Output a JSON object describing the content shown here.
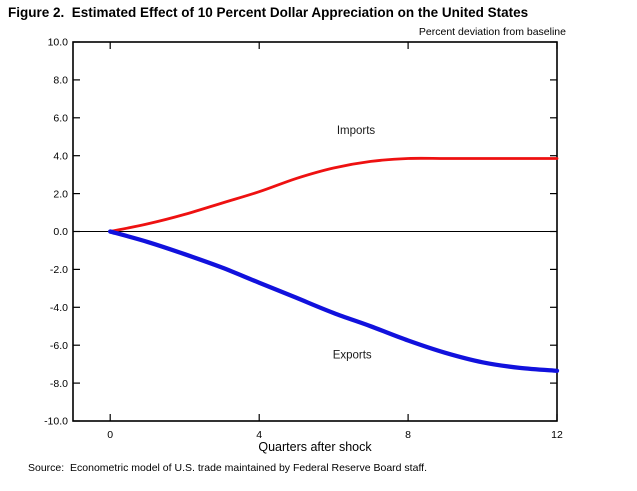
{
  "figure": {
    "title": "Figure 2.  Estimated Effect of 10 Percent Dollar Appreciation on the United States",
    "unit_label": "Percent deviation from baseline",
    "source": "Source:  Econometric model of U.S. trade maintained by Federal Reserve Board staff."
  },
  "chart_data": {
    "type": "line",
    "title": "Figure 2.  Estimated Effect of 10 Percent Dollar Appreciation on the United States",
    "xlabel": "Quarters after shock",
    "ylabel": "Percent deviation from baseline",
    "x": [
      0,
      1,
      2,
      3,
      4,
      5,
      6,
      7,
      8,
      9,
      10,
      11,
      12
    ],
    "series": [
      {
        "name": "Imports",
        "color": "#ee1111",
        "values": [
          0.0,
          0.4,
          0.9,
          1.5,
          2.1,
          2.8,
          3.35,
          3.7,
          3.85,
          3.85,
          3.85,
          3.85,
          3.85
        ],
        "label_at": {
          "x": 6.6,
          "y": 5.15
        }
      },
      {
        "name": "Exports",
        "color": "#1111dd",
        "values": [
          0.0,
          -0.55,
          -1.2,
          -1.9,
          -2.7,
          -3.5,
          -4.3,
          -5.0,
          -5.75,
          -6.4,
          -6.9,
          -7.2,
          -7.35
        ],
        "label_at": {
          "x": 6.5,
          "y": -6.7
        }
      }
    ],
    "xlim": [
      -1,
      12
    ],
    "ylim": [
      -10,
      10
    ],
    "xticks": [
      0,
      4,
      8,
      12
    ],
    "ytick_step": 2,
    "ytick_decimals": 1,
    "grid": false,
    "zero_line": true,
    "legend_position": "inline-labels",
    "frame": "box-with-inward-ticks"
  }
}
